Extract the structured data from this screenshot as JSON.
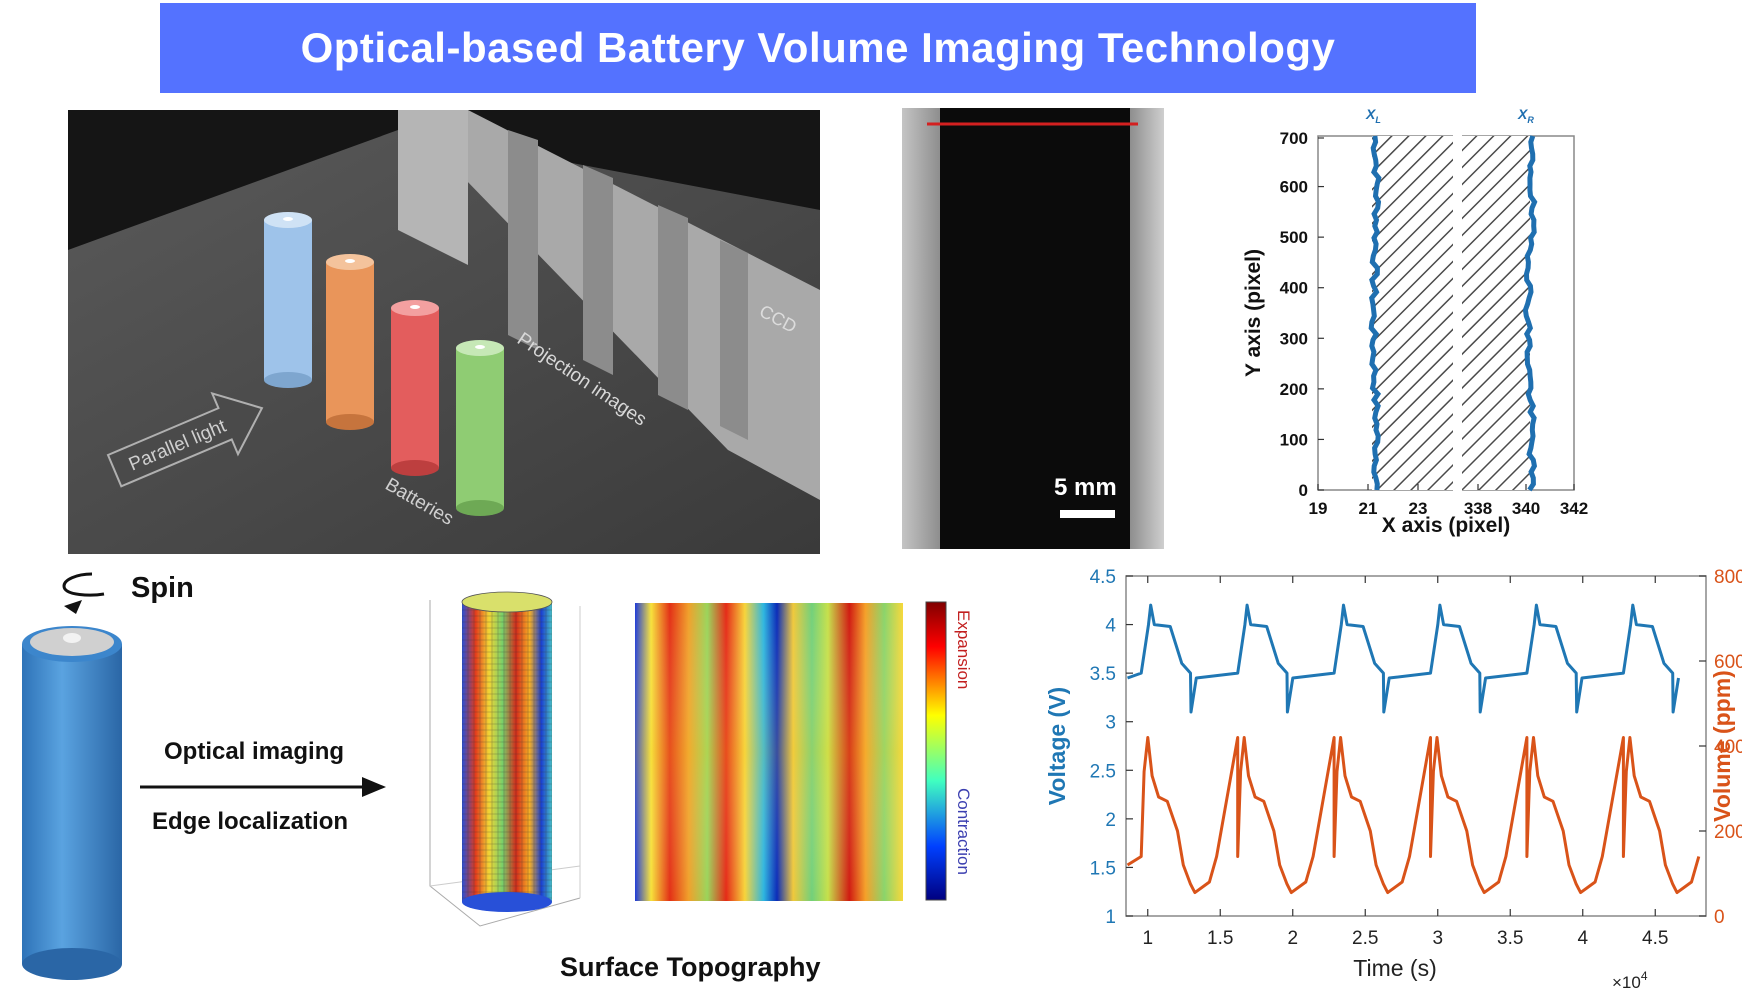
{
  "title": "Optical-based Battery Volume Imaging Technology",
  "setup": {
    "parallel_light_label": "Parallel light",
    "batteries_label": "Batteries",
    "projection_label": "Projection images",
    "ccd_label": "CCD",
    "battery_colors": [
      "#9ec3ea",
      "#e9955a",
      "#e35d5d",
      "#8fcc73"
    ]
  },
  "xray": {
    "scale_label": "5 mm"
  },
  "edge_plot": {
    "xlabel": "X axis (pixel)",
    "ylabel": "Y axis (pixel)",
    "xticks": [
      "19",
      "21",
      "23",
      "338",
      "340",
      "342"
    ],
    "yticks": [
      "0",
      "100",
      "200",
      "300",
      "400",
      "500",
      "600",
      "700"
    ],
    "left_marker": "X",
    "left_marker_sub": "L",
    "right_marker": "X",
    "right_marker_sub": "R",
    "line_color": "#1f6fb0"
  },
  "process": {
    "spin_label": "Spin",
    "optical_label": "Optical imaging",
    "edge_label": "Edge localization",
    "surface_label": "Surface Topography",
    "expansion_label": "Expansion",
    "contraction_label": "Contraction"
  },
  "chart_data": {
    "type": "line",
    "xlabel": "Time (s)",
    "ylabel": "Voltage (V)",
    "ylabel_right": "Volume (ppm)",
    "x_multiplier": "×10",
    "x_multiplier_exp": "4",
    "xlim": [
      0.85,
      4.85
    ],
    "ylim": [
      1,
      4.5
    ],
    "ylim_right": [
      0,
      800
    ],
    "xticks": [
      "1",
      "1.5",
      "2",
      "2.5",
      "3",
      "3.5",
      "4",
      "4.5"
    ],
    "yticks": [
      "1",
      "1.5",
      "2",
      "2.5",
      "3",
      "3.5",
      "4",
      "4.5"
    ],
    "yticks_right": [
      "0",
      "200",
      "400",
      "600",
      "800"
    ],
    "period": 0.665,
    "cycle_start": 0.955,
    "series": [
      {
        "axis": "left",
        "color": "#1f77b4",
        "cycle_x": [
          0,
          0.05,
          0.065,
          0.09,
          0.2,
          0.28,
          0.34,
          0.343,
          0.38,
          0.665
        ],
        "cycle_y": [
          3.5,
          4.0,
          4.2,
          4.0,
          3.98,
          3.6,
          3.5,
          3.1,
          3.45,
          3.5
        ]
      },
      {
        "axis": "right",
        "color": "#d95319",
        "cycle_x": [
          0,
          0.02,
          0.045,
          0.075,
          0.12,
          0.18,
          0.25,
          0.29,
          0.34,
          0.37,
          0.47,
          0.52,
          0.665
        ],
        "cycle_y": [
          140,
          340,
          420,
          330,
          280,
          270,
          200,
          120,
          75,
          55,
          80,
          140,
          420
        ]
      }
    ]
  }
}
